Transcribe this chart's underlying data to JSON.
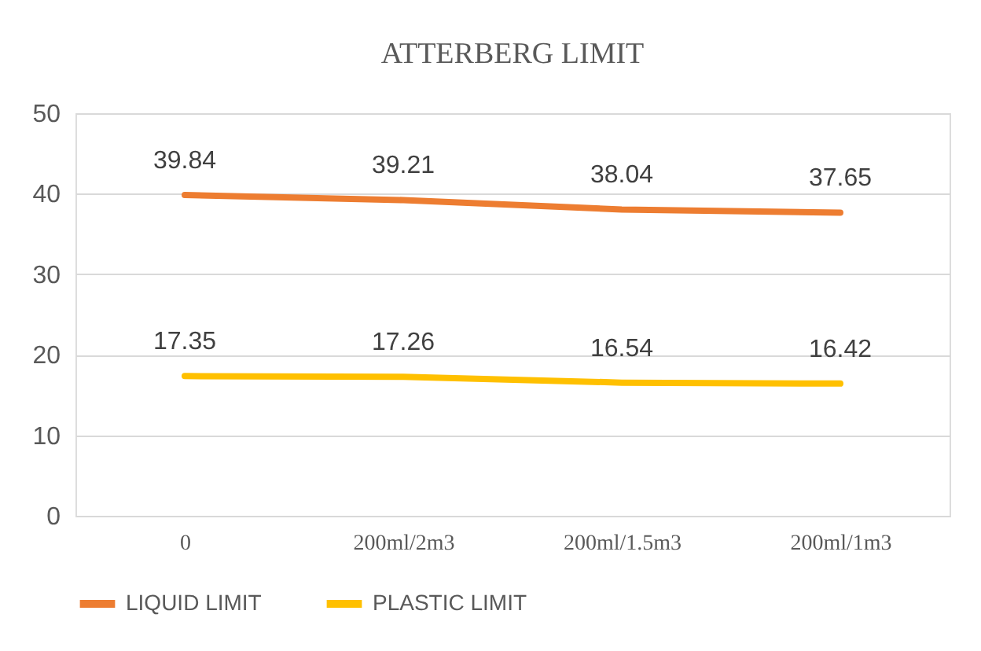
{
  "chart_data": {
    "type": "line",
    "title": "ATTERBERG LIMIT",
    "categories": [
      "0",
      "200ml/2m3",
      "200ml/1.5m3",
      "200ml/1m3"
    ],
    "series": [
      {
        "name": "LIQUID LIMIT",
        "color": "#ed7d31",
        "values": [
          39.84,
          39.21,
          38.04,
          37.65
        ]
      },
      {
        "name": "PLASTIC LIMIT",
        "color": "#ffc000",
        "values": [
          17.35,
          17.26,
          16.54,
          16.42
        ]
      }
    ],
    "ylim": [
      0,
      50
    ],
    "yticks": [
      0,
      10,
      20,
      30,
      40,
      50
    ],
    "grid": "y",
    "legend": "bottom",
    "data_labels": true
  }
}
